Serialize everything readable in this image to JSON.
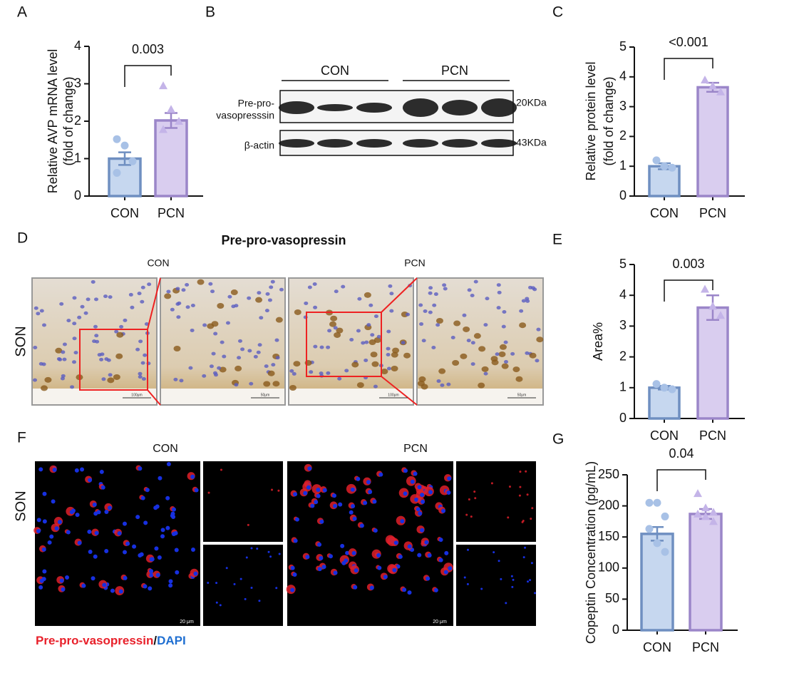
{
  "panel_labels": [
    "A",
    "B",
    "C",
    "D",
    "E",
    "F",
    "G"
  ],
  "blot": {
    "groups": [
      "CON",
      "PCN"
    ],
    "rows": [
      {
        "label": [
          "Pre-pro-",
          "vasopresssin"
        ],
        "size": "20KDa"
      },
      {
        "label": [
          "β-actin"
        ],
        "size": "43KDa"
      }
    ]
  },
  "ihc": {
    "title": "Pre-pro-vasopressin",
    "groups": [
      "CON",
      "PCN"
    ],
    "row": "SON",
    "scales": [
      "100μm",
      "50μm"
    ]
  },
  "if": {
    "groups": [
      "CON",
      "PCN"
    ],
    "row": "SON",
    "legend": [
      "Pre-pro-vasopressin",
      "/",
      "DAPI"
    ],
    "scale": "20 μm"
  },
  "chart_data": [
    {
      "type": "bar",
      "ylabel": [
        "Relative AVP mRNA level",
        "(fold of change)"
      ],
      "categories": [
        "CON",
        "PCN"
      ],
      "values": [
        1.0,
        2.02
      ],
      "errors": [
        0.17,
        0.2
      ],
      "points": [
        [
          1.52,
          1.35,
          0.93,
          0.62
        ],
        [
          2.95,
          2.32,
          2.0,
          1.78
        ]
      ],
      "ylim": [
        0,
        4
      ],
      "yticks": [
        0,
        1,
        2,
        3,
        4
      ],
      "annotation": "0.003",
      "colors": [
        "#6f8fc1",
        "#9b86c9"
      ],
      "fill_colors": [
        "#c6d7ef",
        "#d9cdef"
      ],
      "point_colors": [
        "#a8c1e6",
        "#c4b4e8"
      ]
    },
    {
      "type": "bar",
      "ylabel": [
        "Relative protein level",
        "(fold of change)"
      ],
      "categories": [
        "CON",
        "PCN"
      ],
      "values": [
        1.0,
        3.65
      ],
      "errors": [
        0.1,
        0.15
      ],
      "points": [
        [
          1.2,
          1.0,
          0.95
        ],
        [
          3.9,
          3.7,
          3.5
        ]
      ],
      "ylim": [
        0,
        5
      ],
      "yticks": [
        0,
        1,
        2,
        3,
        4,
        5
      ],
      "annotation": "<0.001",
      "colors": [
        "#6f8fc1",
        "#9b86c9"
      ],
      "fill_colors": [
        "#c6d7ef",
        "#d9cdef"
      ],
      "point_colors": [
        "#a8c1e6",
        "#c4b4e8"
      ]
    },
    {
      "type": "bar",
      "ylabel": [
        "Area%"
      ],
      "categories": [
        "CON",
        "PCN"
      ],
      "values": [
        1.0,
        3.6
      ],
      "errors": [
        0.06,
        0.4
      ],
      "points": [
        [
          1.12,
          1.0,
          0.95
        ],
        [
          4.2,
          3.65,
          3.35
        ]
      ],
      "ylim": [
        0,
        5
      ],
      "yticks": [
        0,
        1,
        2,
        3,
        4,
        5
      ],
      "annotation": "0.003",
      "colors": [
        "#6f8fc1",
        "#9b86c9"
      ],
      "fill_colors": [
        "#c6d7ef",
        "#d9cdef"
      ],
      "point_colors": [
        "#a8c1e6",
        "#c4b4e8"
      ]
    },
    {
      "type": "bar",
      "ylabel": [
        "Copeptin Concentration (pg/mL)"
      ],
      "categories": [
        "CON",
        "PCN"
      ],
      "values": [
        155,
        187
      ],
      "errors": [
        11,
        8
      ],
      "points": [
        [
          205,
          205,
          183,
          163,
          140,
          126
        ],
        [
          220,
          197,
          190,
          187,
          183,
          175
        ]
      ],
      "ylim": [
        0,
        250
      ],
      "yticks": [
        0,
        50,
        100,
        150,
        200,
        250
      ],
      "annotation": "0.04",
      "colors": [
        "#6f8fc1",
        "#9b86c9"
      ],
      "fill_colors": [
        "#c6d7ef",
        "#d9cdef"
      ],
      "point_colors": [
        "#a8c1e6",
        "#c4b4e8"
      ]
    }
  ]
}
